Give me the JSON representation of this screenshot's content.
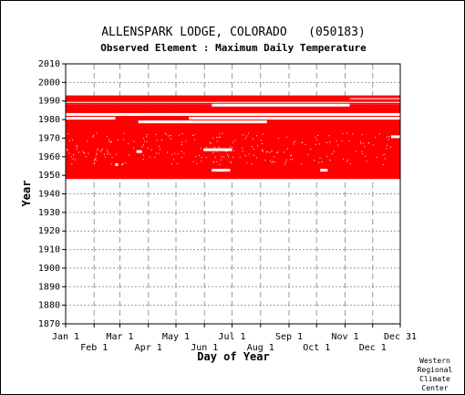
{
  "chart_data": {
    "type": "bar",
    "title": "ALLENSPARK LODGE, COLORADO   (050183)",
    "subtitle": "Observed Element : Maximum Daily Temperature",
    "xlabel": "Day of Year",
    "ylabel": "Year",
    "x_ticks_upper": [
      "Jan 1",
      "Mar 1",
      "May 1",
      "Jul 1",
      "Sep 1",
      "Nov 1",
      "Dec 31"
    ],
    "x_ticks_lower": [
      "Feb 1",
      "Apr 1",
      "Jun 1",
      "Aug 1",
      "Oct 1",
      "Dec 1"
    ],
    "x_tick_days": [
      1,
      32,
      60,
      91,
      121,
      152,
      182,
      213,
      244,
      274,
      305,
      335,
      365
    ],
    "y_ticks": [
      1870,
      1880,
      1890,
      1900,
      1910,
      1920,
      1930,
      1940,
      1950,
      1960,
      1970,
      1980,
      1990,
      2000,
      2010
    ],
    "xlim": [
      1,
      365
    ],
    "ylim": [
      1870,
      2010
    ],
    "grid": true,
    "bar_color": "#ff0000",
    "series": [
      {
        "values": [
          {
            "year_start": 1948,
            "year_end": 1979,
            "day_start": 1,
            "day_end": 365
          },
          {
            "year_start": 1980,
            "year_end": 1981,
            "day_start": 1,
            "day_end": 365
          },
          {
            "year_start": 1982,
            "year_end": 1987,
            "day_start": 1,
            "day_end": 365
          },
          {
            "year_start": 1988,
            "year_end": 1992,
            "day_start": 1,
            "day_end": 365
          }
        ]
      }
    ],
    "gaps": [
      {
        "year_start": 1982,
        "year_end": 1983,
        "day_start": 1,
        "day_end": 365
      },
      {
        "year_start": 1980,
        "year_end": 1981,
        "day_start": 1,
        "day_end": 55
      },
      {
        "year_start": 1980,
        "year_end": 1981,
        "day_start": 135,
        "day_end": 365
      },
      {
        "year_start": 1987,
        "year_end": 1988,
        "day_start": 160,
        "day_end": 310
      },
      {
        "year_start": 1989,
        "year_end": 1989,
        "day_start": 1,
        "day_end": 365
      },
      {
        "year_start": 1991,
        "year_end": 1991,
        "day_start": 310,
        "day_end": 365
      },
      {
        "year_start": 1978,
        "year_end": 1979,
        "day_start": 80,
        "day_end": 220
      },
      {
        "year_start": 1963,
        "year_end": 1964,
        "day_start": 151,
        "day_end": 182
      },
      {
        "year_start": 1952,
        "year_end": 1953,
        "day_start": 160,
        "day_end": 180
      },
      {
        "year_start": 1962,
        "year_end": 1963,
        "day_start": 78,
        "day_end": 84
      },
      {
        "year_start": 1952,
        "year_end": 1953,
        "day_start": 278,
        "day_end": 286
      },
      {
        "year_start": 1955,
        "year_end": 1956,
        "day_start": 55,
        "day_end": 58
      },
      {
        "year_start": 1970,
        "year_end": 1971,
        "day_start": 355,
        "day_end": 365
      }
    ]
  },
  "credit": [
    "Western",
    "Regional",
    "Climate",
    "Center"
  ]
}
